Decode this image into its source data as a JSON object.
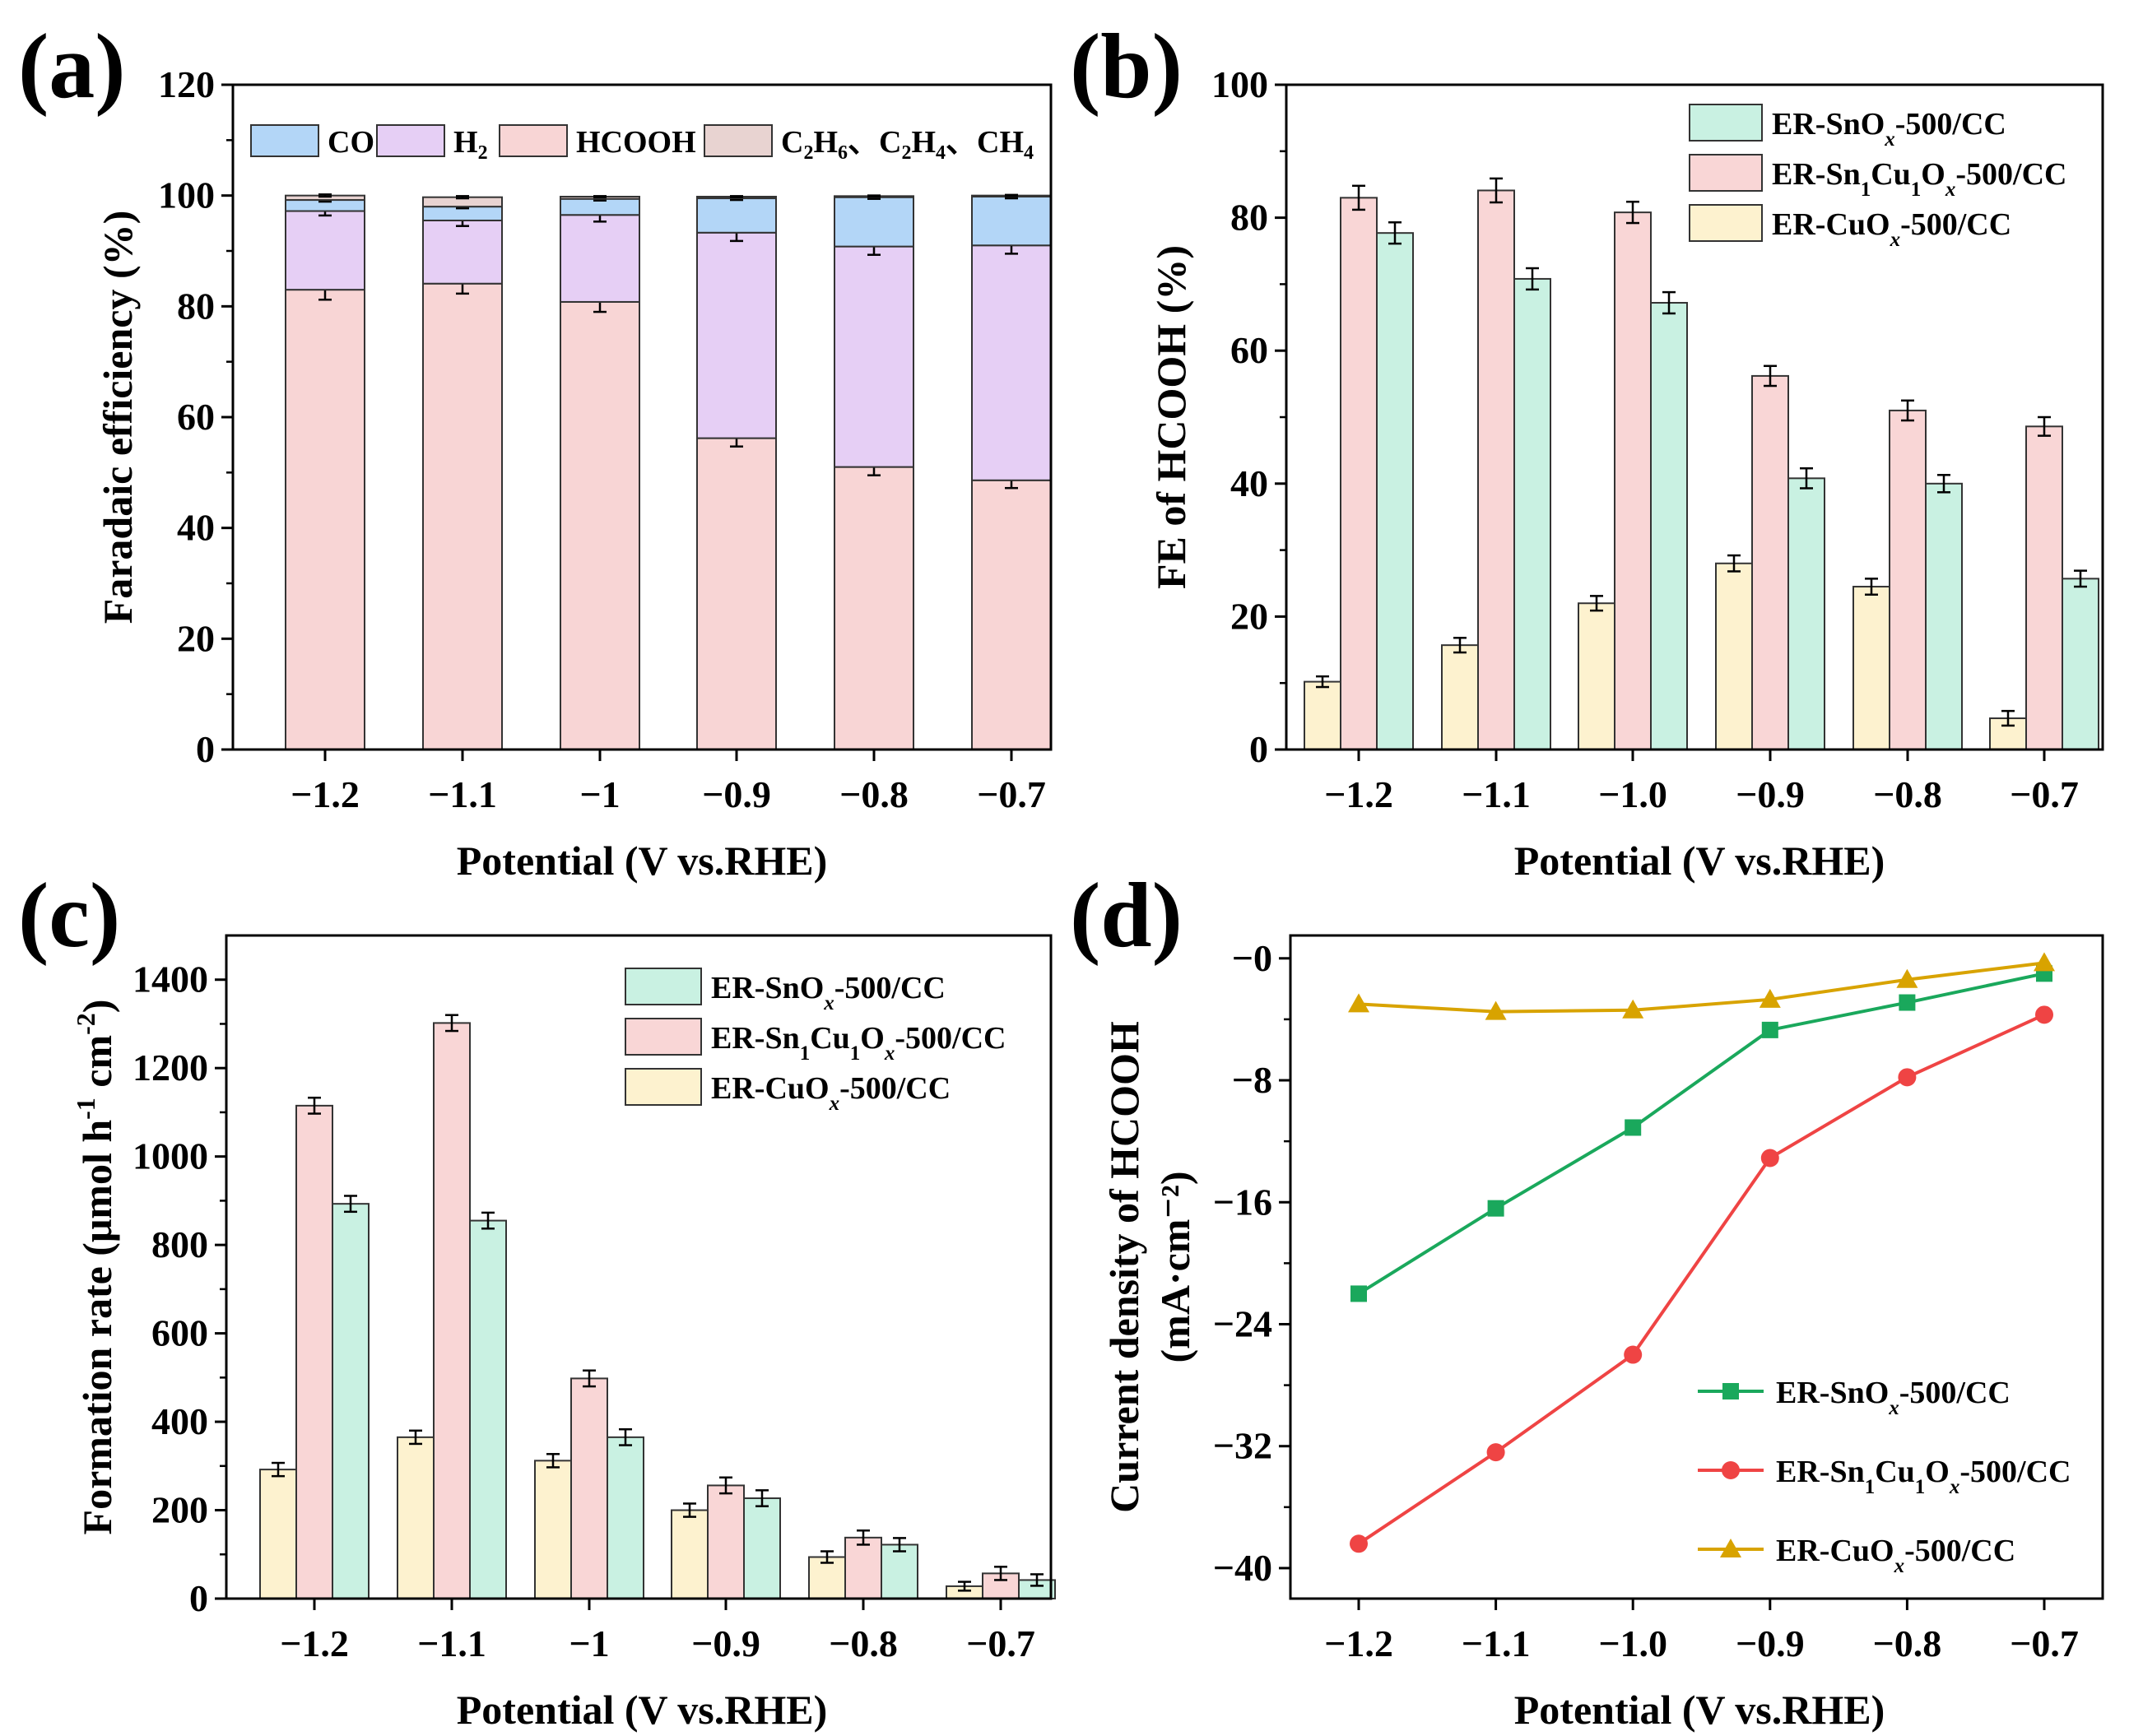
{
  "colors": {
    "hcooh": "#f8d5d5",
    "h2": "#e6cff5",
    "co": "#b3d6f7",
    "hydrocarbons": "#e8d3d1",
    "sno": "#c9f1e2",
    "sncu": "#f9d6d6",
    "cuo": "#fdf2cf",
    "line_sno": "#1aa85c",
    "line_sncu": "#ef4444",
    "line_cuo": "#d8a300"
  },
  "chart_data": [
    {
      "panel": "(a)",
      "type": "bar",
      "stacked": true,
      "categories": [
        "−1.2",
        "−1.1",
        "−1",
        "−0.9",
        "−0.8",
        "−0.7"
      ],
      "xlabel_main": "Potential",
      "xlabel_unit": "(V vs.RHE)",
      "ylabel": "Faradaic efficiency (%)",
      "ylim": [
        0,
        120
      ],
      "yticks": [
        "0",
        "20",
        "40",
        "60",
        "80",
        "100",
        "120"
      ],
      "series": [
        {
          "name": "HCOOH",
          "values": [
            83.0,
            84.1,
            80.8,
            56.2,
            51.0,
            48.6
          ],
          "errors": [
            1.8,
            1.8,
            1.8,
            1.5,
            1.5,
            1.4
          ]
        },
        {
          "name": "H2",
          "values": [
            14.2,
            11.4,
            15.7,
            37.1,
            39.8,
            42.4
          ],
          "errors": [
            0.8,
            1.0,
            1.2,
            1.5,
            1.5,
            1.5
          ]
        },
        {
          "name": "CO",
          "values": [
            2.0,
            2.5,
            2.9,
            6.2,
            8.9,
            8.8
          ],
          "errors": [
            0.3,
            0.3,
            0.3,
            0.3,
            0.3,
            0.3
          ]
        },
        {
          "name": "C2H6、C2H4、CH4",
          "values": [
            0.8,
            1.7,
            0.4,
            0.3,
            0.2,
            0.2
          ],
          "errors": [
            0.2,
            0.2,
            0.1,
            0.1,
            0.1,
            0.1
          ]
        }
      ],
      "legend": {
        "co": "CO",
        "h2": [
          "H",
          "2"
        ],
        "hcooh": "HCOOH",
        "hc": [
          [
            "C",
            "2",
            "H",
            "6",
            "、C",
            "2",
            "H",
            "4",
            "、CH",
            "4"
          ]
        ]
      }
    },
    {
      "panel": "(b)",
      "type": "bar",
      "categories": [
        "−1.2",
        "−1.1",
        "−1.0",
        "−0.9",
        "−0.8",
        "−0.7"
      ],
      "xlabel_main": "Potential",
      "xlabel_unit": "(V vs.RHE)",
      "ylabel": "FE of HCOOH (%)",
      "ylim": [
        0,
        100
      ],
      "yticks": [
        "0",
        "20",
        "40",
        "60",
        "80",
        "100"
      ],
      "series": [
        {
          "name": "ER-CuOx-500/CC",
          "values": [
            10.2,
            15.7,
            22.0,
            28.0,
            24.5,
            4.7
          ],
          "errors": [
            0.8,
            1.1,
            1.1,
            1.2,
            1.2,
            1.1
          ]
        },
        {
          "name": "ER-Sn1Cu1Ox-500/CC",
          "values": [
            83.0,
            84.1,
            80.8,
            56.2,
            51.0,
            48.6
          ],
          "errors": [
            1.8,
            1.8,
            1.6,
            1.5,
            1.5,
            1.4
          ]
        },
        {
          "name": "ER-SnOx-500/CC",
          "values": [
            77.7,
            70.8,
            67.2,
            40.8,
            40.0,
            25.7
          ],
          "errors": [
            1.6,
            1.6,
            1.6,
            1.5,
            1.3,
            1.2
          ]
        }
      ],
      "legend": [
        "ER-SnOₓ-500/CC",
        "ER-Sn₁Cu₁Oₓ-500/CC",
        "ER-CuOₓ-500/CC"
      ]
    },
    {
      "panel": "(c)",
      "type": "bar",
      "categories": [
        "−1.2",
        "−1.1",
        "−1",
        "−0.9",
        "−0.8",
        "−0.7"
      ],
      "xlabel_main": "Potential",
      "xlabel_unit": "(V vs.RHE)",
      "ylabel": "Formation rate (μmol h⁻¹ cm⁻²)",
      "ylim": [
        0,
        1500
      ],
      "yticks": [
        "0",
        "200",
        "400",
        "600",
        "800",
        "1000",
        "1200",
        "1400"
      ],
      "series": [
        {
          "name": "ER-CuOx-500/CC",
          "values": [
            292,
            365,
            312,
            200,
            94,
            28
          ],
          "errors": [
            15,
            15,
            15,
            15,
            13,
            10
          ]
        },
        {
          "name": "ER-Sn1Cu1Ox-500/CC",
          "values": [
            1115,
            1302,
            498,
            256,
            138,
            57
          ],
          "errors": [
            18,
            18,
            18,
            18,
            16,
            15
          ]
        },
        {
          "name": "ER-SnOx-500/CC",
          "values": [
            893,
            855,
            365,
            227,
            122,
            42
          ],
          "errors": [
            18,
            18,
            18,
            18,
            15,
            13
          ]
        }
      ],
      "legend": [
        "ER-SnOₓ-500/CC",
        "ER-Sn₁Cu₁Oₓ-500/CC",
        "ER-CuOₓ-500/CC"
      ]
    },
    {
      "panel": "(d)",
      "type": "line",
      "x": [
        -1.2,
        -1.1,
        -1.0,
        -0.9,
        -0.8,
        -0.7
      ],
      "xticks": [
        "−1.2",
        "−1.1",
        "−1.0",
        "−0.9",
        "−0.8",
        "−0.7"
      ],
      "xlabel_main": "Potential",
      "xlabel_unit": "(V vs.RHE)",
      "ylabel_line1": "Current density of HCOOH",
      "ylabel_line2": "(mA·cm⁻²)",
      "ylim": [
        -42,
        1.5
      ],
      "yticks": [
        "−0",
        "−8",
        "−16",
        "−24",
        "−32",
        "−40"
      ],
      "series": [
        {
          "name": "ER-SnOx-500/CC",
          "marker": "square",
          "values": [
            -22.0,
            -16.4,
            -11.1,
            -4.7,
            -2.9,
            -1.0
          ]
        },
        {
          "name": "ER-Sn1Cu1Ox-500/CC",
          "marker": "circle",
          "values": [
            -38.4,
            -32.4,
            -26.0,
            -13.1,
            -7.8,
            -3.7
          ]
        },
        {
          "name": "ER-CuOx-500/CC",
          "marker": "triangle",
          "values": [
            -3.0,
            -3.5,
            -3.4,
            -2.7,
            -1.4,
            -0.3
          ]
        }
      ],
      "legend": [
        "ER-SnOₓ-500/CC",
        "ER-Sn₁Cu₁Oₓ-500/CC",
        "ER-CuOₓ-500/CC"
      ]
    }
  ]
}
